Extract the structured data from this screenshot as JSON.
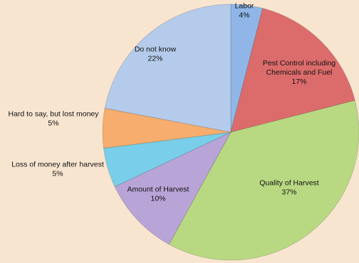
{
  "chart_data": {
    "type": "pie",
    "title": "",
    "slices": [
      {
        "label": "Labor",
        "value": 4,
        "value_label": "4%",
        "color": "#8fb6e6"
      },
      {
        "label": "Pest Control including Chemicals and Fuel",
        "value": 17,
        "value_label": "17%",
        "color": "#dc6c6c"
      },
      {
        "label": "Quality of Harvest",
        "value": 37,
        "value_label": "37%",
        "color": "#b8d982"
      },
      {
        "label": "Amount of Harvest",
        "value": 10,
        "value_label": "10%",
        "color": "#b9a4d8"
      },
      {
        "label": "Loss of money after harvest",
        "value": 5,
        "value_label": "5%",
        "color": "#79cfe9"
      },
      {
        "label": "Hard to say, but lost money",
        "value": 5,
        "value_label": "5%",
        "color": "#f6ad6e"
      },
      {
        "label": "Do not know",
        "value": 22,
        "value_label": "22%",
        "color": "#b5cbeb"
      }
    ],
    "label_lines": [
      [
        "Labor",
        "4%"
      ],
      [
        "Pest Control including",
        "Chemicals and Fuel",
        "17%"
      ],
      [
        "Quality of Harvest",
        "37%"
      ],
      [
        "Amount of Harvest",
        "10%"
      ],
      [
        "Loss of money after harvest",
        "5%"
      ],
      [
        "Hard to say, but lost money",
        "5%"
      ],
      [
        "Do not know",
        "22%"
      ]
    ],
    "legend": "none",
    "start_angle_deg": 0,
    "direction": "clockwise"
  }
}
